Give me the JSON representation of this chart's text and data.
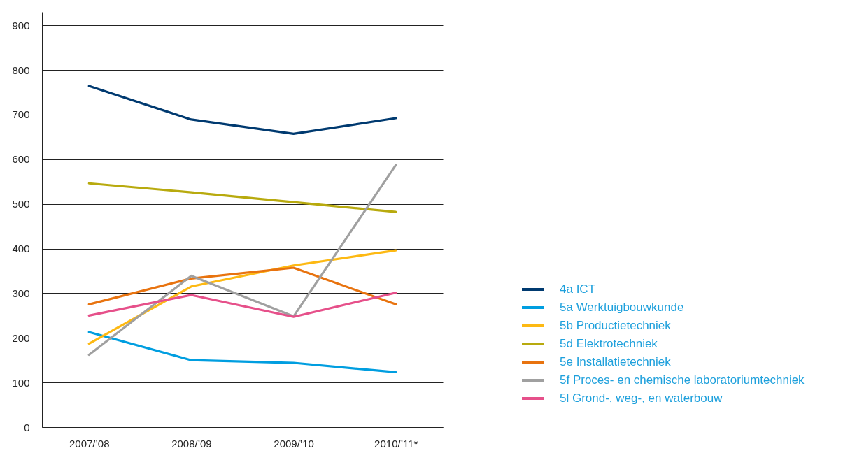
{
  "chart_data": {
    "type": "line",
    "categories": [
      "2007/’08",
      "2008/’09",
      "2009/’10",
      "2010/’11*"
    ],
    "series": [
      {
        "name": "4a ICT",
        "color": "#003a70",
        "values": [
          764,
          689,
          657,
          692
        ]
      },
      {
        "name": "5a Werktuigbouwkunde",
        "color": "#009ee0",
        "values": [
          213,
          150,
          144,
          123
        ]
      },
      {
        "name": "5b Productietechniek",
        "color": "#fdb913",
        "values": [
          187,
          315,
          362,
          396
        ]
      },
      {
        "name": "5d Elektrotechniek",
        "color": "#b8aa0e",
        "values": [
          546,
          526,
          504,
          482
        ]
      },
      {
        "name": "5e Installatietechniek",
        "color": "#e8730f",
        "values": [
          275,
          333,
          357,
          275
        ]
      },
      {
        "name": "5f Proces- en chemische laboratoriumtechniek",
        "color": "#a0a0a0",
        "values": [
          162,
          339,
          248,
          587
        ]
      },
      {
        "name": "5l Grond-, weg-, en waterbouw",
        "color": "#e6508a",
        "values": [
          250,
          296,
          247,
          301
        ]
      }
    ],
    "ylim": [
      0,
      930
    ],
    "yticks": [
      0,
      100,
      200,
      300,
      400,
      500,
      600,
      700,
      800,
      900
    ],
    "grid": "y",
    "legend": "right",
    "line_style": "solid"
  }
}
